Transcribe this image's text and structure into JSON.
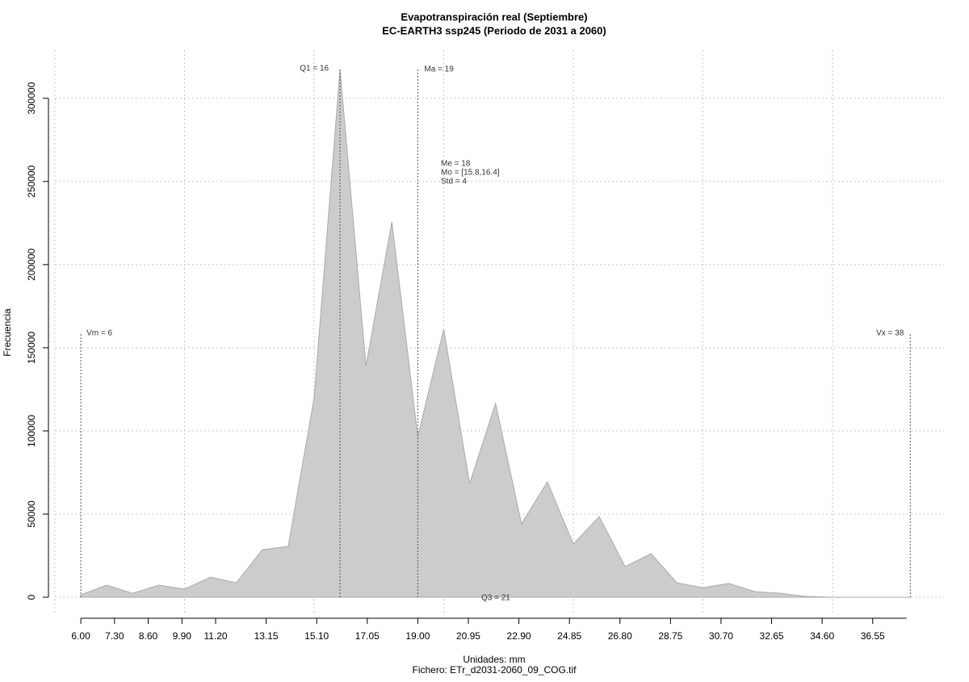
{
  "chart_data": {
    "type": "area",
    "title": "Evapotranspiración real (Septiembre)",
    "subtitle": "EC-EARTH3 ssp245 (Periodo de 2031 a 2060)",
    "x_label": "Unidades: mm",
    "caption": "Fichero: ETr_d2031-2060_09_COG.tif",
    "y_label": "Frecuencia",
    "x": [
      6,
      7,
      8,
      9,
      10,
      11,
      12,
      13,
      14,
      15,
      16,
      17,
      18,
      19,
      20,
      21,
      22,
      23,
      24,
      25,
      26,
      27,
      28,
      29,
      30,
      31,
      32,
      33,
      34,
      35,
      36,
      37,
      38
    ],
    "values": [
      1500,
      7300,
      2400,
      7300,
      4900,
      12100,
      8700,
      28600,
      30600,
      119900,
      317500,
      139000,
      225700,
      96600,
      161200,
      68400,
      116500,
      44200,
      69400,
      32000,
      48500,
      18400,
      26200,
      8700,
      5800,
      8300,
      3400,
      2400,
      500,
      0,
      0,
      0,
      0
    ],
    "color": "#cccccc",
    "xlim": [
      5,
      39.3
    ],
    "ylim": [
      -9700,
      329000
    ],
    "xticks": [
      {
        "value": 6,
        "label": "6.00"
      },
      {
        "value": 7.3,
        "label": "7.30"
      },
      {
        "value": 8.6,
        "label": "8.60"
      },
      {
        "value": 9.9,
        "label": "9.90"
      },
      {
        "value": 11.2,
        "label": "11.20"
      },
      {
        "value": 13.15,
        "label": "13.15"
      },
      {
        "value": 15.1,
        "label": "15.10"
      },
      {
        "value": 17.05,
        "label": "17.05"
      },
      {
        "value": 19,
        "label": "19.00"
      },
      {
        "value": 20.95,
        "label": "20.95"
      },
      {
        "value": 22.9,
        "label": "22.90"
      },
      {
        "value": 24.85,
        "label": "24.85"
      },
      {
        "value": 26.8,
        "label": "26.80"
      },
      {
        "value": 28.75,
        "label": "28.75"
      },
      {
        "value": 30.7,
        "label": "30.70"
      },
      {
        "value": 32.65,
        "label": "32.65"
      },
      {
        "value": 34.6,
        "label": "34.60"
      },
      {
        "value": 36.55,
        "label": "36.55"
      }
    ],
    "yticks": [
      0,
      50000,
      100000,
      150000,
      200000,
      250000,
      300000
    ],
    "xgrid": [
      5,
      10,
      15,
      20,
      25,
      30,
      35
    ],
    "grid": true,
    "markers": [
      {
        "label": "Vm = 6",
        "value": 6
      },
      {
        "label": "Q1 = 16",
        "value": 16
      },
      {
        "label": "Ma = 19",
        "value": 19
      },
      {
        "label": "Vx = 38",
        "value": 38
      }
    ],
    "notes": [
      "Me = 18",
      "Mo = [15.8,16.4]",
      "Std = 4",
      "Q3 = 21"
    ]
  }
}
